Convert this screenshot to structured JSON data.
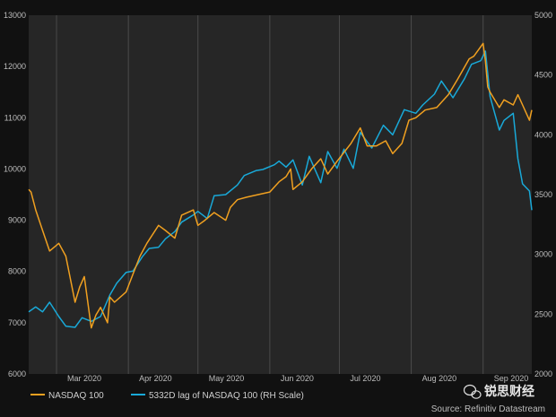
{
  "chart_data": {
    "type": "line",
    "left_axis": {
      "ylim": [
        6000,
        13000
      ],
      "ticks": [
        "6000",
        "7000",
        "8000",
        "9000",
        "10000",
        "11000",
        "12000",
        "13000"
      ]
    },
    "right_axis": {
      "ylim": [
        2000,
        5000
      ],
      "ticks": [
        "2000",
        "2500",
        "3000",
        "3500",
        "4000",
        "4500",
        "5000"
      ]
    },
    "x_axis": {
      "xlim": [
        "2020-02-18",
        "2020-09-22"
      ],
      "ticks": [
        {
          "date": "2020-03-01",
          "label": "Mar 2020"
        },
        {
          "date": "2020-04-01",
          "label": "Apr 2020"
        },
        {
          "date": "2020-05-01",
          "label": "May 2020"
        },
        {
          "date": "2020-06-01",
          "label": "Jun 2020"
        },
        {
          "date": "2020-07-01",
          "label": "Jul 2020"
        },
        {
          "date": "2020-08-01",
          "label": "Aug 2020"
        },
        {
          "date": "2020-09-01",
          "label": "Sep 2020"
        }
      ]
    },
    "grid": {
      "vertical": true,
      "horizontal": false
    },
    "series": [
      {
        "name": "NASDAQ 100",
        "axis": "left",
        "color": "#f0a020",
        "x": [
          "2020-02-18",
          "2020-02-19",
          "2020-02-21",
          "2020-02-24",
          "2020-02-27",
          "2020-03-02",
          "2020-03-05",
          "2020-03-09",
          "2020-03-11",
          "2020-03-13",
          "2020-03-16",
          "2020-03-18",
          "2020-03-20",
          "2020-03-23",
          "2020-03-24",
          "2020-03-26",
          "2020-03-31",
          "2020-04-03",
          "2020-04-06",
          "2020-04-09",
          "2020-04-14",
          "2020-04-17",
          "2020-04-21",
          "2020-04-24",
          "2020-04-29",
          "2020-05-01",
          "2020-05-04",
          "2020-05-08",
          "2020-05-13",
          "2020-05-15",
          "2020-05-18",
          "2020-05-22",
          "2020-05-27",
          "2020-06-01",
          "2020-06-05",
          "2020-06-08",
          "2020-06-10",
          "2020-06-11",
          "2020-06-15",
          "2020-06-19",
          "2020-06-23",
          "2020-06-26",
          "2020-06-30",
          "2020-07-06",
          "2020-07-10",
          "2020-07-13",
          "2020-07-17",
          "2020-07-21",
          "2020-07-24",
          "2020-07-28",
          "2020-07-31",
          "2020-08-03",
          "2020-08-07",
          "2020-08-12",
          "2020-08-17",
          "2020-08-21",
          "2020-08-26",
          "2020-08-28",
          "2020-09-01",
          "2020-09-02",
          "2020-09-03",
          "2020-09-04",
          "2020-09-08",
          "2020-09-10",
          "2020-09-14",
          "2020-09-16",
          "2020-09-18",
          "2020-09-21",
          "2020-09-22"
        ],
        "values": [
          9600,
          9550,
          9200,
          8800,
          8400,
          8550,
          8300,
          7400,
          7700,
          7900,
          6900,
          7150,
          7300,
          7000,
          7500,
          7400,
          7600,
          7950,
          8300,
          8550,
          8900,
          8800,
          8650,
          9100,
          9200,
          8900,
          9000,
          9150,
          9000,
          9250,
          9400,
          9450,
          9500,
          9550,
          9750,
          9850,
          10000,
          9600,
          9750,
          10000,
          10200,
          9900,
          10150,
          10500,
          10800,
          10450,
          10450,
          10550,
          10300,
          10500,
          10950,
          11000,
          11150,
          11200,
          11450,
          11750,
          12150,
          12200,
          12450,
          12100,
          11600,
          11500,
          11200,
          11350,
          11250,
          11450,
          11250,
          10950,
          11150
        ]
      },
      {
        "name": "5332D lag of NASDAQ 100 (RH Scale)",
        "axis": "right",
        "color": "#19a9d8",
        "x": [
          "2020-02-18",
          "2020-02-21",
          "2020-02-24",
          "2020-02-27",
          "2020-03-02",
          "2020-03-05",
          "2020-03-09",
          "2020-03-12",
          "2020-03-16",
          "2020-03-20",
          "2020-03-24",
          "2020-03-27",
          "2020-03-31",
          "2020-04-03",
          "2020-04-07",
          "2020-04-10",
          "2020-04-14",
          "2020-04-17",
          "2020-04-21",
          "2020-04-24",
          "2020-04-29",
          "2020-05-01",
          "2020-05-05",
          "2020-05-08",
          "2020-05-13",
          "2020-05-18",
          "2020-05-21",
          "2020-05-26",
          "2020-05-29",
          "2020-06-03",
          "2020-06-05",
          "2020-06-08",
          "2020-06-11",
          "2020-06-15",
          "2020-06-18",
          "2020-06-23",
          "2020-06-26",
          "2020-06-30",
          "2020-07-03",
          "2020-07-07",
          "2020-07-10",
          "2020-07-15",
          "2020-07-20",
          "2020-07-24",
          "2020-07-29",
          "2020-08-03",
          "2020-08-06",
          "2020-08-11",
          "2020-08-14",
          "2020-08-19",
          "2020-08-24",
          "2020-08-27",
          "2020-08-31",
          "2020-09-02",
          "2020-09-04",
          "2020-09-08",
          "2020-09-10",
          "2020-09-14",
          "2020-09-16",
          "2020-09-18",
          "2020-09-21",
          "2020-09-22"
        ],
        "values": [
          2520,
          2560,
          2520,
          2600,
          2480,
          2400,
          2390,
          2470,
          2440,
          2480,
          2660,
          2760,
          2850,
          2860,
          2980,
          3050,
          3060,
          3130,
          3190,
          3270,
          3330,
          3360,
          3300,
          3490,
          3500,
          3580,
          3660,
          3700,
          3710,
          3750,
          3780,
          3730,
          3790,
          3580,
          3820,
          3600,
          3860,
          3720,
          3880,
          3720,
          4020,
          3890,
          4080,
          4000,
          4210,
          4180,
          4250,
          4340,
          4450,
          4310,
          4470,
          4590,
          4620,
          4700,
          4320,
          4040,
          4120,
          4180,
          3800,
          3590,
          3530,
          3370
        ]
      }
    ],
    "legend": {
      "position": "bottom-left"
    },
    "source": "Source: Refinitiv Datastream",
    "watermark": "锐思财经"
  }
}
